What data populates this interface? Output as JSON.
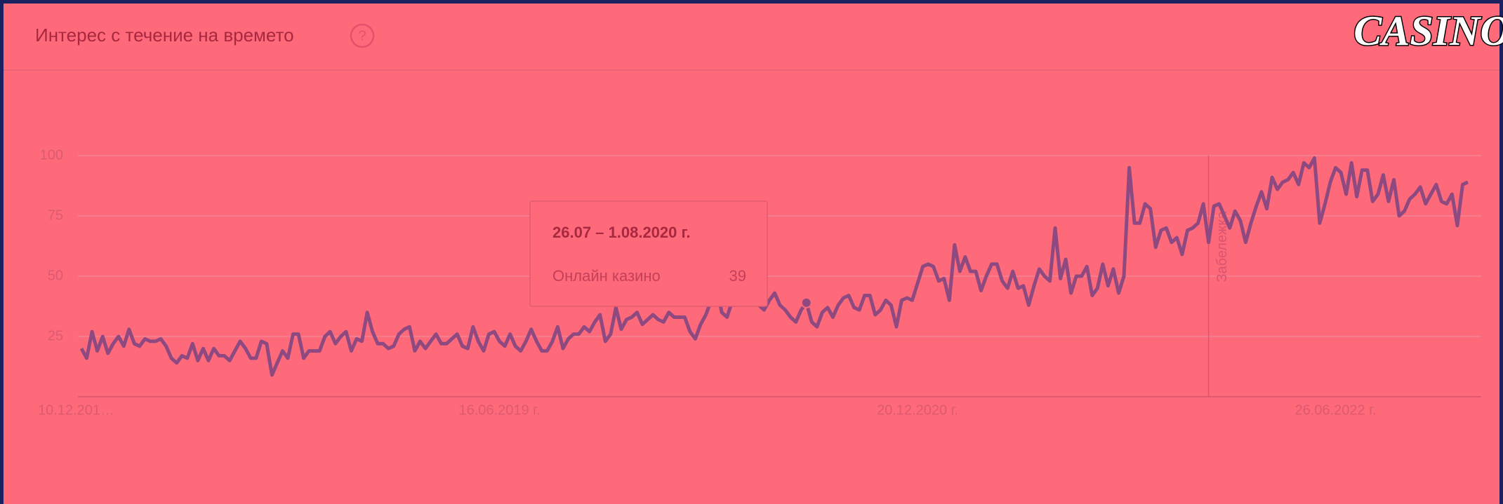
{
  "logo": "CASINO",
  "chart_data": {
    "type": "line",
    "title": "Интерес с течение на времето",
    "categories": [
      "10.12.201…",
      null,
      null,
      null,
      null,
      null,
      null,
      null,
      null,
      null,
      null,
      null,
      null,
      null,
      null,
      null,
      null,
      null,
      null,
      null,
      null,
      null,
      null,
      null,
      null,
      null,
      null,
      null,
      null,
      null,
      null,
      null,
      null,
      null,
      null,
      null,
      null,
      null,
      null,
      null,
      null,
      null,
      null,
      null,
      null,
      null,
      null,
      null,
      null,
      null,
      null,
      null,
      null,
      null,
      null,
      null,
      null,
      null,
      null,
      null,
      null,
      null,
      null,
      null,
      null,
      null,
      null,
      null,
      null,
      null,
      null,
      null,
      null,
      null,
      null,
      null,
      null,
      null,
      null,
      "16.06.2019 г.",
      null,
      null,
      null,
      null,
      null,
      null,
      null,
      null,
      null,
      null,
      null,
      null,
      null,
      null,
      null,
      null,
      null,
      null,
      null,
      null,
      null,
      null,
      null,
      null,
      null,
      null,
      null,
      null,
      null,
      null,
      null,
      null,
      null,
      null,
      null,
      null,
      null,
      null,
      null,
      null,
      null,
      null,
      null,
      null,
      null,
      null,
      null,
      null,
      null,
      null,
      null,
      null,
      null,
      null,
      null,
      null,
      null,
      null,
      null,
      null,
      null,
      null,
      null,
      null,
      null,
      null,
      null,
      null,
      null,
      null,
      null,
      null,
      null,
      null,
      null,
      null,
      null,
      null,
      "20.12.2020 г.",
      null,
      null,
      null,
      null,
      null,
      null,
      null,
      null,
      null,
      null,
      null,
      null,
      null,
      null,
      null,
      null,
      null,
      null,
      null,
      null,
      null,
      null,
      null,
      null,
      null,
      null,
      null,
      null,
      null,
      null,
      null,
      null,
      null,
      null,
      null,
      null,
      null,
      null,
      null,
      null,
      null,
      null,
      null,
      null,
      null,
      null,
      null,
      null,
      null,
      null,
      null,
      null,
      null,
      null,
      null,
      null,
      null,
      null,
      null,
      null,
      null,
      null,
      null,
      null,
      null,
      null,
      null,
      null,
      null,
      null,
      null,
      null,
      null,
      null,
      null,
      null,
      null,
      null,
      "26.06.2022 г.",
      null,
      null,
      null,
      null,
      null,
      null,
      null,
      null,
      null,
      null,
      null,
      null,
      null,
      null,
      null,
      null,
      null,
      null,
      null,
      null,
      null,
      null,
      null,
      null,
      null
    ],
    "series": [
      {
        "name": "Онлайн казино",
        "color": "#8e4a80",
        "values": [
          20,
          16,
          27,
          19,
          25,
          18,
          22,
          25,
          21,
          28,
          22,
          21,
          24,
          23,
          23,
          24,
          21,
          16,
          14,
          17,
          16,
          22,
          15,
          20,
          15,
          20,
          17,
          17,
          15,
          19,
          23,
          20,
          16,
          16,
          23,
          22,
          9,
          14,
          19,
          16,
          26,
          26,
          16,
          19,
          19,
          19,
          25,
          27,
          22,
          25,
          27,
          19,
          24,
          23,
          35,
          27,
          22,
          22,
          20,
          21,
          26,
          28,
          29,
          19,
          23,
          20,
          23,
          26,
          22,
          22,
          24,
          26,
          21,
          20,
          29,
          23,
          19,
          26,
          27,
          23,
          21,
          26,
          21,
          19,
          23,
          28,
          23,
          19,
          19,
          23,
          29,
          20,
          24,
          26,
          26,
          29,
          27,
          31,
          34,
          23,
          26,
          37,
          28,
          32,
          33,
          35,
          30,
          32,
          34,
          32,
          31,
          35,
          33,
          33,
          33,
          27,
          24,
          30,
          34,
          40,
          46,
          35,
          33,
          40,
          47,
          43,
          44,
          40,
          38,
          36,
          40,
          43,
          38,
          36,
          33,
          31,
          36,
          39,
          31,
          29,
          35,
          37,
          33,
          38,
          41,
          42,
          37,
          36,
          42,
          42,
          34,
          36,
          40,
          38,
          29,
          40,
          41,
          40,
          47,
          54,
          55,
          54,
          48,
          49,
          40,
          63,
          52,
          58,
          52,
          52,
          44,
          50,
          55,
          55,
          48,
          45,
          52,
          45,
          46,
          38,
          46,
          53,
          50,
          48,
          70,
          49,
          57,
          43,
          50,
          50,
          54,
          42,
          45,
          55,
          46,
          53,
          43,
          50,
          95,
          72,
          72,
          80,
          78,
          62,
          69,
          70,
          64,
          66,
          59,
          69,
          70,
          72,
          80,
          64,
          79,
          80,
          75,
          70,
          77,
          73,
          64,
          72,
          79,
          85,
          78,
          91,
          86,
          89,
          90,
          93,
          88,
          97,
          95,
          99,
          72,
          80,
          89,
          95,
          93,
          84,
          97,
          83,
          94,
          94,
          81,
          84,
          92,
          81,
          90,
          75,
          77,
          82,
          84,
          87,
          80,
          84,
          88,
          81,
          80,
          84,
          71,
          88,
          89
        ]
      }
    ],
    "ylim": [
      0,
      100
    ],
    "yticks": [
      25,
      50,
      75,
      100
    ],
    "grid": true,
    "annotation": {
      "index": 213,
      "label": "Забележка"
    },
    "tooltip": {
      "index": 137,
      "date": "26.07 – 1.08.2020 г."
    }
  }
}
